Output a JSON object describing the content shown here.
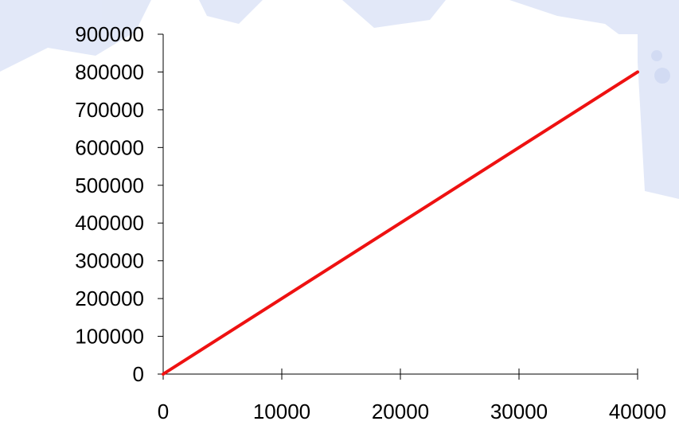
{
  "colors": {
    "background": "#ffffff",
    "watermark": "#dfe6f7",
    "axis": "#000000",
    "series_line": "#ee1111"
  },
  "chart_data": {
    "type": "line",
    "title": "",
    "xlabel": "",
    "ylabel": "",
    "xlim": [
      0,
      40000
    ],
    "ylim": [
      0,
      900000
    ],
    "x_ticks": [
      0,
      10000,
      20000,
      30000,
      40000
    ],
    "x_tick_labels": [
      "0",
      "10000",
      "20000",
      "30000",
      "40000"
    ],
    "y_ticks": [
      0,
      100000,
      200000,
      300000,
      400000,
      500000,
      600000,
      700000,
      800000,
      900000
    ],
    "y_tick_labels": [
      "0",
      "100000",
      "200000",
      "300000",
      "400000",
      "500000",
      "600000",
      "700000",
      "800000",
      "900000"
    ],
    "grid": false,
    "legend": "none",
    "series": [
      {
        "x": [
          0,
          40000
        ],
        "y": [
          0,
          800000
        ],
        "color": "#ee1111"
      }
    ]
  }
}
